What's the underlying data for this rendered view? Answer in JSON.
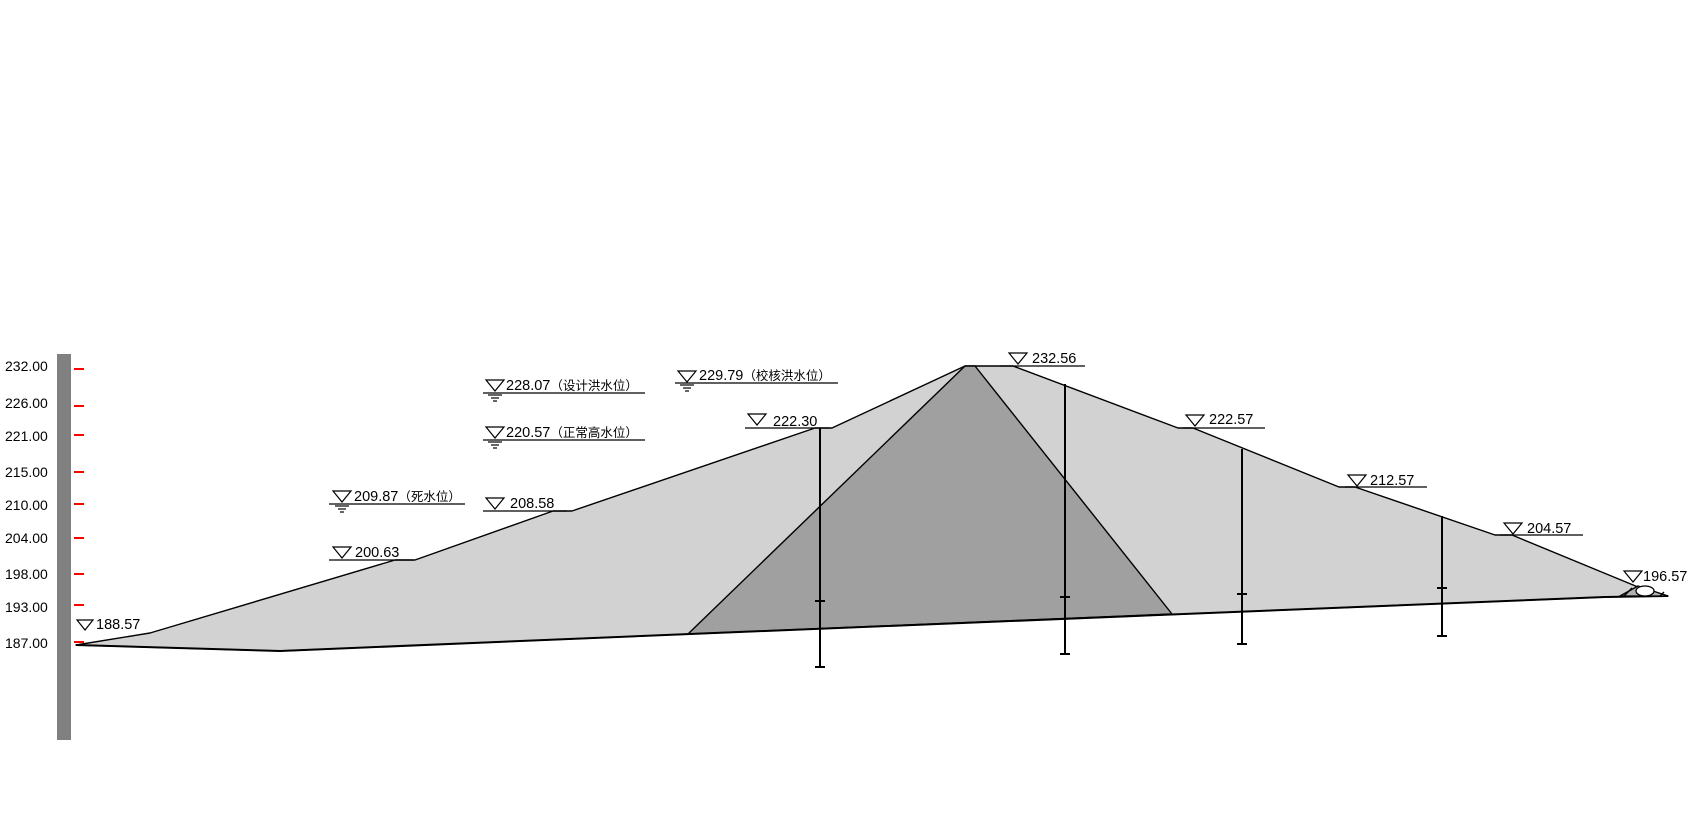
{
  "scale": {
    "ticks": [
      "232.00",
      "226.00",
      "221.00",
      "215.00",
      "210.00",
      "204.00",
      "198.00",
      "193.00",
      "187.00"
    ],
    "tick_color": "#ff0000",
    "bar_color": "#808080"
  },
  "elevations": {
    "crest": "232.56",
    "up_berm_1": "222.30",
    "up_berm_2": "208.58",
    "up_berm_3": "200.63",
    "up_toe": "188.57",
    "down_berm_1": "222.57",
    "down_berm_2": "212.57",
    "down_berm_3": "204.57",
    "down_toe": "196.57"
  },
  "water_levels": {
    "design_flood": {
      "value": "228.07",
      "note": "（设计洪水位）"
    },
    "check_flood": {
      "value": "229.79",
      "note": "（校核洪水位）"
    },
    "normal": {
      "value": "220.57",
      "note": "（正常高水位）"
    },
    "dead": {
      "value": "209.87",
      "note": "（死水位）"
    }
  },
  "colors": {
    "shell": "#d2d2d2",
    "core": "#a0a0a0",
    "outline": "#000000"
  }
}
